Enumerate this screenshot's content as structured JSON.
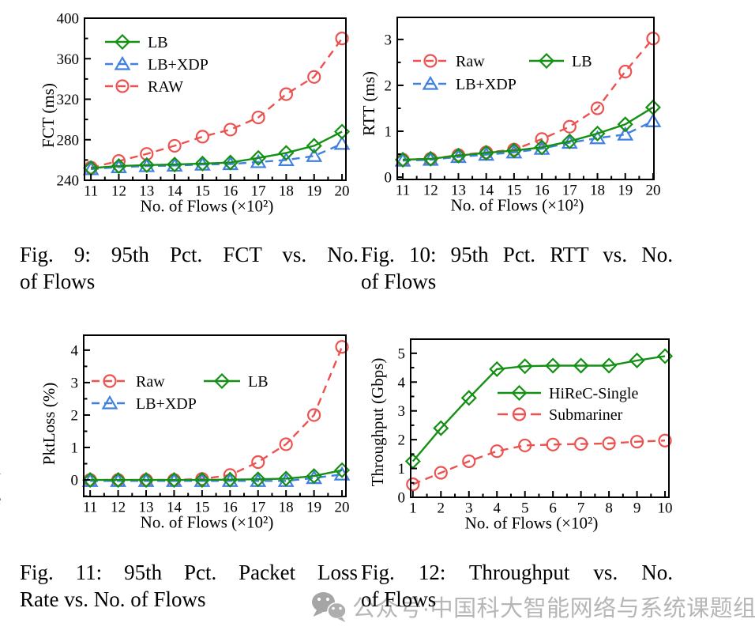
{
  "colors": {
    "green": "#149014",
    "blue": "#4080e0",
    "red": "#ec5250",
    "axis": "#000000",
    "watermark_text": "#b6b6b6",
    "watermark_icon": "#a5a5a5",
    "fragment_blue": "#2e6fe0"
  },
  "chart_data": [
    {
      "id": "fig9-fct",
      "type": "line",
      "title": "",
      "xlabel": "No. of Flows (×10²)",
      "ylabel": "FCT (ms)",
      "x": [
        11,
        12,
        13,
        14,
        15,
        16,
        17,
        18,
        19,
        20
      ],
      "xticks": [
        11,
        12,
        13,
        14,
        15,
        16,
        17,
        18,
        19,
        20
      ],
      "yticks": [
        240,
        280,
        320,
        360,
        400
      ],
      "xlim": [
        10.77,
        20.14
      ],
      "ylim": [
        240,
        400
      ],
      "grid": false,
      "legend_position": "upper-left-inside",
      "series": [
        {
          "name": "LB",
          "color": "green",
          "marker": "diamond",
          "line": "solid",
          "values": [
            252,
            254,
            255,
            255.5,
            256.5,
            257.5,
            262,
            267,
            274,
            288
          ]
        },
        {
          "name": "LB+XDP",
          "color": "blue",
          "marker": "triangle",
          "line": "dashed",
          "values": [
            251,
            253,
            254,
            254.5,
            255.5,
            256,
            258,
            260,
            264,
            276
          ]
        },
        {
          "name": "RAW",
          "color": "red",
          "marker": "circle",
          "line": "dashed",
          "values": [
            252.5,
            259,
            266,
            274,
            283,
            290,
            302,
            325,
            342,
            380
          ]
        }
      ]
    },
    {
      "id": "fig10-rtt",
      "type": "line",
      "title": "",
      "xlabel": "No. of Flows (×10²)",
      "ylabel": "RTT (ms)",
      "x": [
        11,
        12,
        13,
        14,
        15,
        16,
        17,
        18,
        19,
        20
      ],
      "xticks": [
        11,
        12,
        13,
        14,
        15,
        16,
        17,
        18,
        19,
        20
      ],
      "yticks": [
        0,
        1,
        2,
        3
      ],
      "xlim": [
        10.8,
        20.03
      ],
      "ylim": [
        -0.05,
        3.48
      ],
      "grid": false,
      "legend_position": "upper-left-inside-two-columns",
      "series": [
        {
          "name": "Raw",
          "color": "red",
          "marker": "circle",
          "line": "dashed",
          "values": [
            0.38,
            0.4,
            0.48,
            0.54,
            0.6,
            0.83,
            1.1,
            1.5,
            2.3,
            3.02
          ]
        },
        {
          "name": "LB",
          "color": "green",
          "marker": "diamond",
          "line": "solid",
          "values": [
            0.38,
            0.4,
            0.47,
            0.53,
            0.58,
            0.65,
            0.78,
            0.95,
            1.15,
            1.52
          ]
        },
        {
          "name": "LB+XDP",
          "color": "blue",
          "marker": "triangle",
          "line": "dashed",
          "values": [
            0.36,
            0.38,
            0.44,
            0.49,
            0.54,
            0.62,
            0.75,
            0.85,
            0.93,
            1.22
          ]
        }
      ]
    },
    {
      "id": "fig11-pktloss",
      "type": "line",
      "title": "",
      "xlabel": "No. of Flows (×10²)",
      "ylabel": "PktLoss (%)",
      "x": [
        11,
        12,
        13,
        14,
        15,
        16,
        17,
        18,
        19,
        20
      ],
      "xticks": [
        11,
        12,
        13,
        14,
        15,
        16,
        17,
        18,
        19,
        20
      ],
      "yticks": [
        0,
        1,
        2,
        3,
        4
      ],
      "xlim": [
        10.77,
        20.14
      ],
      "ylim": [
        -0.51,
        4.46
      ],
      "grid": false,
      "legend_position": "upper-left-inside-two-columns",
      "series": [
        {
          "name": "Raw",
          "color": "red",
          "marker": "circle",
          "line": "dashed",
          "values": [
            0,
            0,
            0,
            0,
            0.03,
            0.15,
            0.55,
            1.1,
            2.0,
            4.1
          ]
        },
        {
          "name": "LB",
          "color": "green",
          "marker": "diamond",
          "line": "solid",
          "values": [
            0,
            0,
            0,
            0,
            0,
            0.01,
            0.02,
            0.04,
            0.12,
            0.3
          ]
        },
        {
          "name": "LB+XDP",
          "color": "blue",
          "marker": "triangle",
          "line": "dashed",
          "values": [
            -0.03,
            -0.03,
            -0.03,
            -0.03,
            -0.03,
            -0.03,
            -0.03,
            -0.03,
            0.06,
            0.17
          ]
        }
      ]
    },
    {
      "id": "fig12-throughput",
      "type": "line",
      "title": "",
      "xlabel": "No. of Flows (×10²)",
      "ylabel": "Throughput (Gbps)",
      "x": [
        1,
        2,
        3,
        4,
        5,
        6,
        7,
        8,
        9,
        10
      ],
      "xticks": [
        1,
        2,
        3,
        4,
        5,
        6,
        7,
        8,
        9,
        10
      ],
      "yticks": [
        0,
        1,
        2,
        3,
        4,
        5
      ],
      "xlim": [
        0.92,
        10.14
      ],
      "ylim": [
        0,
        5.49
      ],
      "grid": false,
      "legend_position": "middle-right-inside",
      "series": [
        {
          "name": "HiReC-Single",
          "color": "green",
          "marker": "diamond",
          "line": "solid",
          "values": [
            1.25,
            2.4,
            3.45,
            4.45,
            4.55,
            4.57,
            4.57,
            4.57,
            4.75,
            4.9
          ]
        },
        {
          "name": "Submariner",
          "color": "red",
          "marker": "circle",
          "line": "dashed",
          "values": [
            0.45,
            0.85,
            1.25,
            1.6,
            1.8,
            1.83,
            1.85,
            1.87,
            1.93,
            1.97
          ]
        }
      ]
    }
  ],
  "captions": [
    {
      "line1": "Fig. 9: 95th Pct. FCT vs. No.",
      "line2": "of Flows"
    },
    {
      "line1": "Fig. 10: 95th Pct. RTT vs. No.",
      "line2": "of Flows"
    },
    {
      "line1": "Fig. 11: 95th Pct. Packet Loss",
      "line2": "Rate vs. No. of Flows"
    },
    {
      "line1": "Fig. 12: Throughput vs. No.",
      "line2": "of Flows"
    }
  ],
  "watermark": {
    "icon": "wechat-icon",
    "text": "公众号·中国科大智能网络与系统课题组"
  },
  "edge_fragments": [
    "s",
    ",",
    "-",
    "-",
    "1",
    "e"
  ]
}
